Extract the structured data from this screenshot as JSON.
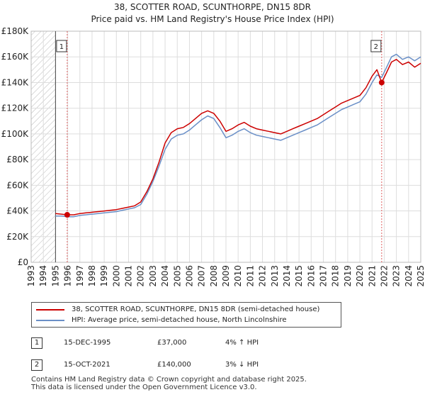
{
  "title_line1": "38, SCOTTER ROAD, SCUNTHORPE, DN15 8DR",
  "title_line2": "Price paid vs. HM Land Registry's House Price Index (HPI)",
  "chart_data": {
    "type": "line",
    "title": "38, SCOTTER ROAD, SCUNTHORPE, DN15 8DR — Price paid vs. HM Land Registry's House Price Index (HPI)",
    "xlim": [
      1993,
      2025
    ],
    "ylim": [
      0,
      180000
    ],
    "yticks": [
      {
        "value": 0,
        "label": "£0"
      },
      {
        "value": 20000,
        "label": "£20K"
      },
      {
        "value": 40000,
        "label": "£40K"
      },
      {
        "value": 60000,
        "label": "£60K"
      },
      {
        "value": 80000,
        "label": "£80K"
      },
      {
        "value": 100000,
        "label": "£100K"
      },
      {
        "value": 120000,
        "label": "£120K"
      },
      {
        "value": 140000,
        "label": "£140K"
      },
      {
        "value": 160000,
        "label": "£160K"
      },
      {
        "value": 180000,
        "label": "£180K"
      }
    ],
    "xticks": [
      "1993",
      "1994",
      "1995",
      "1996",
      "1997",
      "1998",
      "1999",
      "2000",
      "2001",
      "2002",
      "2003",
      "2004",
      "2005",
      "2006",
      "2007",
      "2008",
      "2009",
      "2010",
      "2011",
      "2012",
      "2013",
      "2014",
      "2015",
      "2016",
      "2017",
      "2018",
      "2019",
      "2020",
      "2021",
      "2022",
      "2023",
      "2024",
      "2025"
    ],
    "hatched_before": 1995.0,
    "grid": true,
    "series": [
      {
        "name": "38, SCOTTER ROAD, SCUNTHORPE, DN15 8DR (semi-detached house)",
        "color": "#cc0000",
        "points": [
          [
            1995.0,
            38000
          ],
          [
            1995.5,
            37500
          ],
          [
            1995.96,
            37000
          ],
          [
            1996.5,
            37000
          ],
          [
            1997.0,
            38000
          ],
          [
            1997.5,
            38500
          ],
          [
            1998.0,
            39000
          ],
          [
            1998.5,
            39500
          ],
          [
            1999.0,
            40000
          ],
          [
            1999.5,
            40500
          ],
          [
            2000.0,
            41000
          ],
          [
            2000.5,
            42000
          ],
          [
            2001.0,
            43000
          ],
          [
            2001.5,
            44000
          ],
          [
            2002.0,
            47000
          ],
          [
            2002.5,
            55000
          ],
          [
            2003.0,
            65000
          ],
          [
            2003.5,
            78000
          ],
          [
            2004.0,
            93000
          ],
          [
            2004.5,
            101000
          ],
          [
            2005.0,
            104000
          ],
          [
            2005.5,
            105000
          ],
          [
            2006.0,
            108000
          ],
          [
            2006.5,
            112000
          ],
          [
            2007.0,
            116000
          ],
          [
            2007.5,
            118000
          ],
          [
            2008.0,
            116000
          ],
          [
            2008.5,
            110000
          ],
          [
            2009.0,
            102000
          ],
          [
            2009.5,
            104000
          ],
          [
            2010.0,
            107000
          ],
          [
            2010.5,
            109000
          ],
          [
            2011.0,
            106000
          ],
          [
            2011.5,
            104000
          ],
          [
            2012.0,
            103000
          ],
          [
            2012.5,
            102000
          ],
          [
            2013.0,
            101000
          ],
          [
            2013.5,
            100000
          ],
          [
            2014.0,
            102000
          ],
          [
            2014.5,
            104000
          ],
          [
            2015.0,
            106000
          ],
          [
            2015.5,
            108000
          ],
          [
            2016.0,
            110000
          ],
          [
            2016.5,
            112000
          ],
          [
            2017.0,
            115000
          ],
          [
            2017.5,
            118000
          ],
          [
            2018.0,
            121000
          ],
          [
            2018.5,
            124000
          ],
          [
            2019.0,
            126000
          ],
          [
            2019.5,
            128000
          ],
          [
            2020.0,
            130000
          ],
          [
            2020.5,
            136000
          ],
          [
            2021.0,
            145000
          ],
          [
            2021.4,
            150000
          ],
          [
            2021.79,
            140000
          ],
          [
            2022.2,
            148000
          ],
          [
            2022.6,
            156000
          ],
          [
            2023.0,
            158000
          ],
          [
            2023.5,
            154000
          ],
          [
            2024.0,
            156000
          ],
          [
            2024.5,
            152000
          ],
          [
            2025.0,
            155000
          ]
        ]
      },
      {
        "name": "HPI: Average price, semi-detached house, North Lincolnshire",
        "color": "#6a8fc7",
        "points": [
          [
            1995.0,
            36000
          ],
          [
            1995.5,
            36000
          ],
          [
            1996.0,
            35500
          ],
          [
            1996.5,
            35500
          ],
          [
            1997.0,
            36500
          ],
          [
            1997.5,
            37000
          ],
          [
            1998.0,
            37500
          ],
          [
            1998.5,
            38000
          ],
          [
            1999.0,
            38500
          ],
          [
            1999.5,
            39000
          ],
          [
            2000.0,
            39500
          ],
          [
            2000.5,
            40500
          ],
          [
            2001.0,
            41500
          ],
          [
            2001.5,
            42500
          ],
          [
            2002.0,
            45000
          ],
          [
            2002.5,
            53000
          ],
          [
            2003.0,
            63000
          ],
          [
            2003.5,
            75000
          ],
          [
            2004.0,
            88000
          ],
          [
            2004.5,
            96000
          ],
          [
            2005.0,
            99000
          ],
          [
            2005.5,
            100000
          ],
          [
            2006.0,
            103000
          ],
          [
            2006.5,
            107000
          ],
          [
            2007.0,
            111000
          ],
          [
            2007.5,
            114000
          ],
          [
            2008.0,
            112000
          ],
          [
            2008.5,
            105000
          ],
          [
            2009.0,
            97000
          ],
          [
            2009.5,
            99000
          ],
          [
            2010.0,
            102000
          ],
          [
            2010.5,
            104000
          ],
          [
            2011.0,
            101000
          ],
          [
            2011.5,
            99000
          ],
          [
            2012.0,
            98000
          ],
          [
            2012.5,
            97000
          ],
          [
            2013.0,
            96000
          ],
          [
            2013.5,
            95000
          ],
          [
            2014.0,
            97000
          ],
          [
            2014.5,
            99000
          ],
          [
            2015.0,
            101000
          ],
          [
            2015.5,
            103000
          ],
          [
            2016.0,
            105000
          ],
          [
            2016.5,
            107000
          ],
          [
            2017.0,
            110000
          ],
          [
            2017.5,
            113000
          ],
          [
            2018.0,
            116000
          ],
          [
            2018.5,
            119000
          ],
          [
            2019.0,
            121000
          ],
          [
            2019.5,
            123000
          ],
          [
            2020.0,
            125000
          ],
          [
            2020.5,
            131000
          ],
          [
            2021.0,
            140000
          ],
          [
            2021.4,
            146000
          ],
          [
            2021.79,
            144000
          ],
          [
            2022.2,
            152000
          ],
          [
            2022.6,
            160000
          ],
          [
            2023.0,
            162000
          ],
          [
            2023.5,
            158000
          ],
          [
            2024.0,
            160000
          ],
          [
            2024.5,
            157000
          ],
          [
            2025.0,
            160000
          ]
        ]
      }
    ],
    "markers": [
      {
        "label": "1",
        "x": 1995.96,
        "y": 37000
      },
      {
        "label": "2",
        "x": 2021.79,
        "y": 140000
      }
    ]
  },
  "legend": {
    "items": [
      {
        "label": "38, SCOTTER ROAD, SCUNTHORPE, DN15 8DR (semi-detached house)",
        "color": "#cc0000"
      },
      {
        "label": "HPI: Average price, semi-detached house, North Lincolnshire",
        "color": "#6a8fc7"
      }
    ]
  },
  "transactions": [
    {
      "num": "1",
      "date": "15-DEC-1995",
      "price": "£37,000",
      "hpi": "4% ↑ HPI"
    },
    {
      "num": "2",
      "date": "15-OCT-2021",
      "price": "£140,000",
      "hpi": "3% ↓ HPI"
    }
  ],
  "footer": {
    "line1": "Contains HM Land Registry data © Crown copyright and database right 2025.",
    "line2": "This data is licensed under the Open Government Licence v3.0."
  }
}
